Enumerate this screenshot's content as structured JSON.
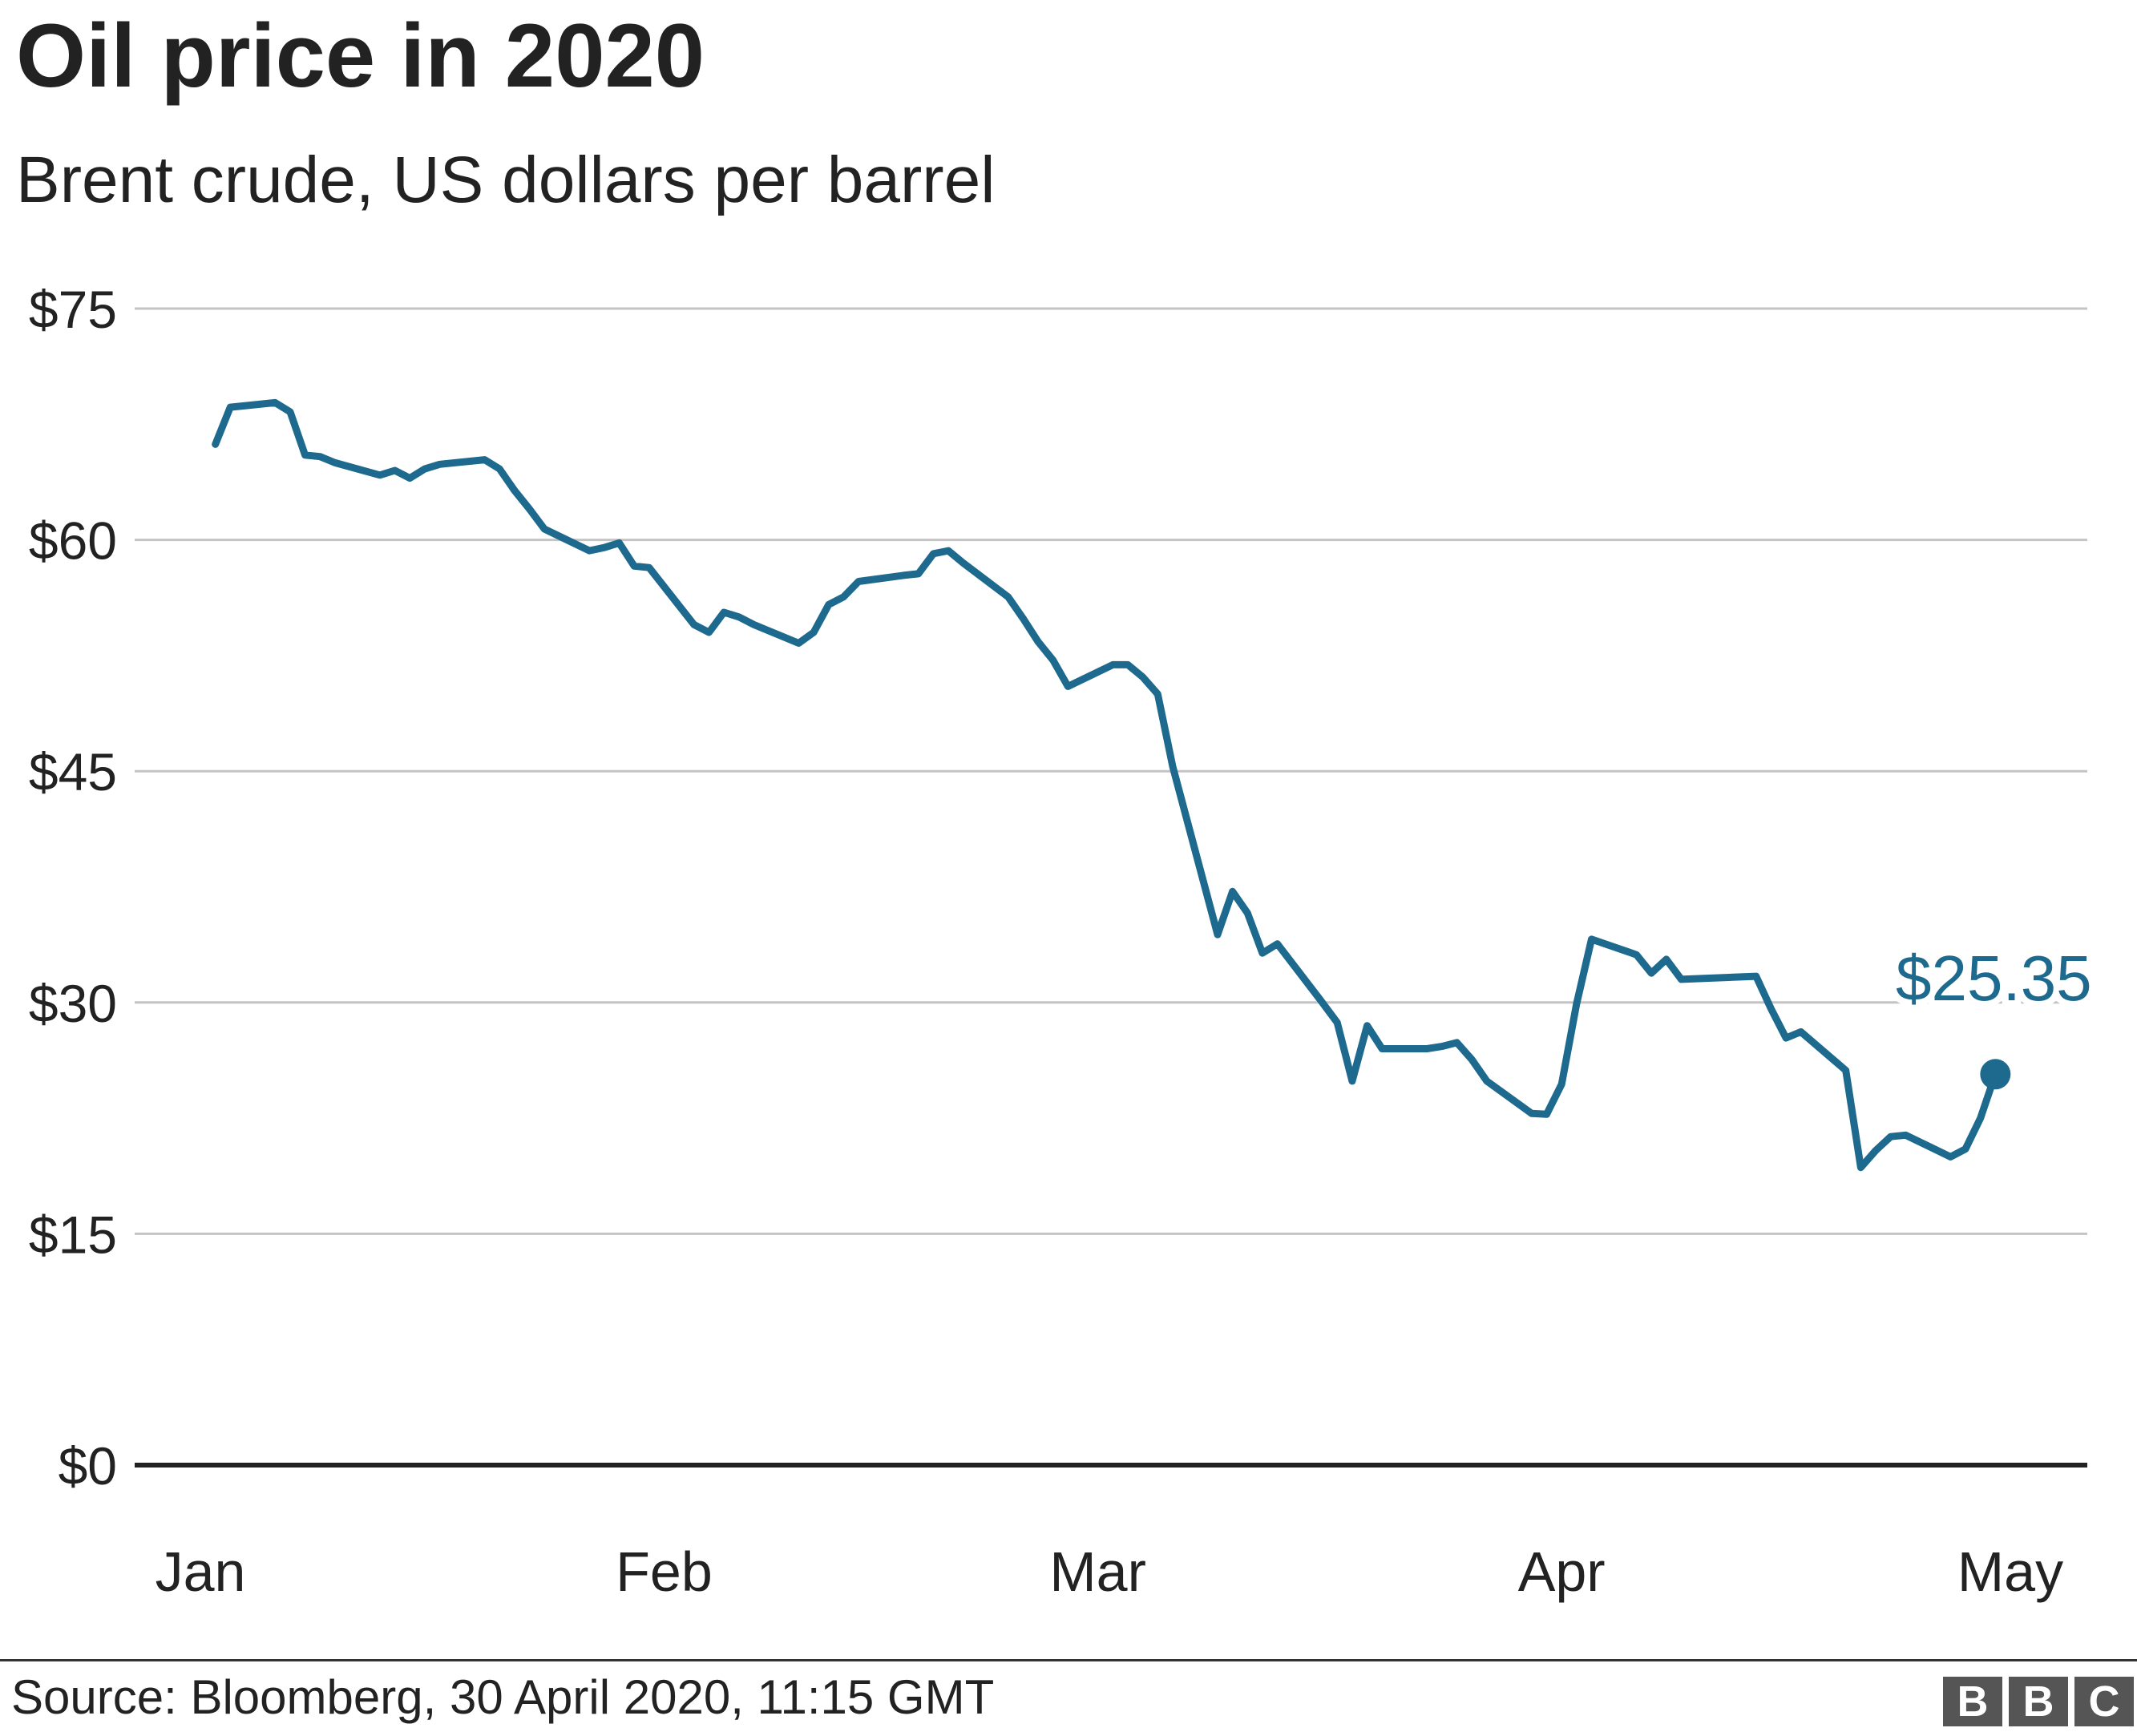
{
  "title": "Oil price in 2020",
  "subtitle": "Brent crude, US dollars per barrel",
  "source": "Source: Bloomberg, 30 April 2020, 11:15 GMT",
  "logo": [
    "B",
    "B",
    "C"
  ],
  "colors": {
    "line": "#1d6a8e",
    "grid": "#c4c4c4",
    "baseline": "#222222",
    "text": "#222222"
  },
  "chart_data": {
    "type": "line",
    "title": "Oil price in 2020",
    "subtitle": "Brent crude, US dollars per barrel",
    "xlabel": "",
    "ylabel": "",
    "ylim": [
      0,
      75
    ],
    "yticks": [
      0,
      15,
      30,
      45,
      60,
      75
    ],
    "ytick_labels": [
      "$0",
      "$15",
      "$30",
      "$45",
      "$60",
      "$75"
    ],
    "xlim": [
      "2020-01-01",
      "2020-05-01"
    ],
    "xticks": [
      "2020-01-01",
      "2020-02-01",
      "2020-03-01",
      "2020-04-01",
      "2020-05-01"
    ],
    "xtick_labels": [
      "Jan",
      "Feb",
      "Mar",
      "Apr",
      "May"
    ],
    "grid": true,
    "end_label": "$25.35",
    "series": [
      {
        "x": [
          "2020-01-02",
          "2020-01-03",
          "2020-01-06",
          "2020-01-07",
          "2020-01-08",
          "2020-01-09",
          "2020-01-10",
          "2020-01-13",
          "2020-01-14",
          "2020-01-15",
          "2020-01-16",
          "2020-01-17",
          "2020-01-20",
          "2020-01-21",
          "2020-01-22",
          "2020-01-23",
          "2020-01-24",
          "2020-01-27",
          "2020-01-28",
          "2020-01-29",
          "2020-01-30",
          "2020-01-31",
          "2020-02-03",
          "2020-02-04",
          "2020-02-05",
          "2020-02-06",
          "2020-02-07",
          "2020-02-10",
          "2020-02-11",
          "2020-02-12",
          "2020-02-13",
          "2020-02-14",
          "2020-02-17",
          "2020-02-18",
          "2020-02-19",
          "2020-02-20",
          "2020-02-21",
          "2020-02-24",
          "2020-02-25",
          "2020-02-26",
          "2020-02-27",
          "2020-02-28",
          "2020-03-02",
          "2020-03-03",
          "2020-03-04",
          "2020-03-05",
          "2020-03-06",
          "2020-03-09",
          "2020-03-10",
          "2020-03-11",
          "2020-03-12",
          "2020-03-13",
          "2020-03-16",
          "2020-03-17",
          "2020-03-18",
          "2020-03-19",
          "2020-03-20",
          "2020-03-23",
          "2020-03-24",
          "2020-03-25",
          "2020-03-26",
          "2020-03-27",
          "2020-03-30",
          "2020-03-31",
          "2020-04-01",
          "2020-04-02",
          "2020-04-03",
          "2020-04-06",
          "2020-04-07",
          "2020-04-08",
          "2020-04-09",
          "2020-04-14",
          "2020-04-15",
          "2020-04-16",
          "2020-04-17",
          "2020-04-20",
          "2020-04-21",
          "2020-04-22",
          "2020-04-23",
          "2020-04-24",
          "2020-04-27",
          "2020-04-28",
          "2020-04-29",
          "2020-04-30"
        ],
        "y": [
          66.2,
          68.6,
          68.9,
          68.3,
          65.5,
          65.4,
          65.0,
          64.2,
          64.5,
          64.0,
          64.6,
          64.9,
          65.2,
          64.6,
          63.2,
          62.0,
          60.7,
          59.3,
          59.5,
          59.8,
          58.3,
          58.2,
          54.5,
          54.0,
          55.3,
          55.0,
          54.5,
          53.3,
          54.0,
          55.8,
          56.3,
          57.3,
          57.7,
          57.8,
          59.1,
          59.3,
          58.5,
          56.3,
          54.9,
          53.4,
          52.2,
          50.5,
          51.9,
          51.9,
          51.1,
          50.0,
          45.3,
          34.4,
          37.2,
          35.8,
          33.2,
          33.8,
          30.0,
          28.7,
          24.9,
          28.5,
          27.0,
          27.0,
          27.15,
          27.4,
          26.3,
          24.9,
          22.8,
          22.75,
          24.7,
          29.9,
          34.1,
          33.1,
          31.9,
          32.8,
          31.5,
          31.7,
          29.6,
          27.7,
          28.1,
          25.6,
          19.3,
          20.4,
          21.3,
          21.4,
          19.99,
          20.5,
          22.5,
          25.35
        ]
      }
    ]
  }
}
